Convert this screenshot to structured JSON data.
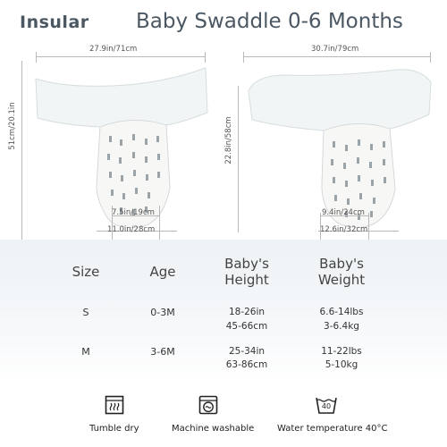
{
  "header": {
    "brand": "Insular",
    "title": "Baby Swaddle 0-6 Months"
  },
  "left_swaddle": {
    "width_label": "27.9in/71cm",
    "height_label": "51cm/20.1in",
    "inner_width_label": "7.5in/19cm",
    "bottom_width_label": "11.0in/28cm"
  },
  "right_swaddle": {
    "width_label": "30.7in/79cm",
    "height_label": "22.8in/58cm",
    "inner_width_label": "9.4in/24cm",
    "bottom_width_label": "12.6in/32cm"
  },
  "size_table": {
    "headers": {
      "size": "Size",
      "age": "Age",
      "height_line1": "Baby's",
      "height_line2": "Height",
      "weight_line1": "Baby's",
      "weight_line2": "Weight"
    },
    "rows": [
      {
        "size": "S",
        "age": "0-3M",
        "height_1": "18-26in",
        "height_2": "45-66cm",
        "weight_1": "6.6-14lbs",
        "weight_2": "3-6.4kg"
      },
      {
        "size": "M",
        "age": "3-6M",
        "height_1": "25-34in",
        "height_2": "63-86cm",
        "weight_1": "11-22lbs",
        "weight_2": "5-10kg"
      }
    ]
  },
  "care": [
    {
      "icon": "tumble-dry-icon",
      "label": "Tumble dry"
    },
    {
      "icon": "machine-washable-icon",
      "label": "Machine washable"
    },
    {
      "icon": "water-temperature-icon",
      "label": "Water temperature 40°C",
      "temp": "40"
    }
  ]
}
